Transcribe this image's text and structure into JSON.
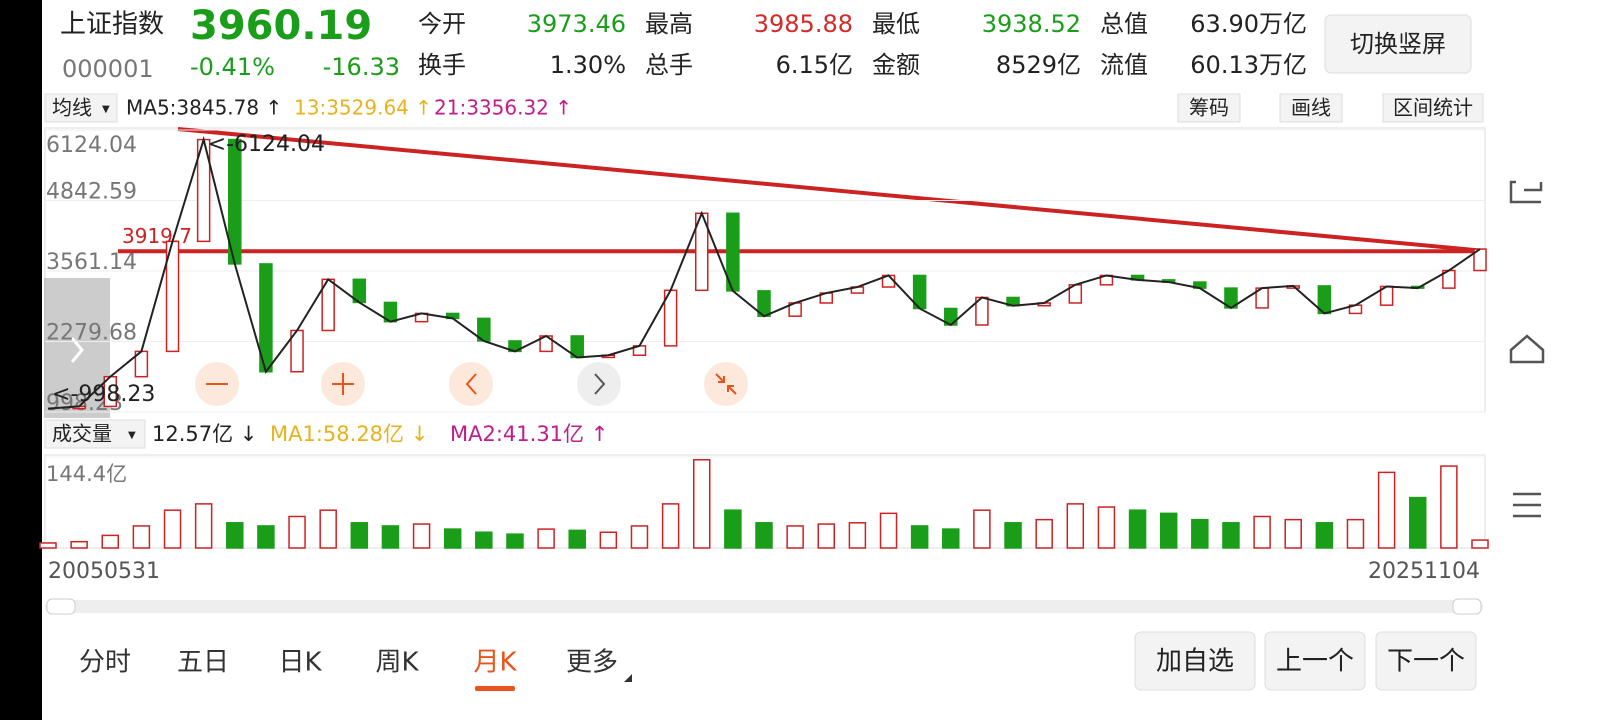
{
  "header": {
    "name": "上证指数",
    "price": "3960.19",
    "code": "000001",
    "change_pct": "-0.41%",
    "change": "-16.33",
    "stats": [
      [
        "今开",
        "3973.46"
      ],
      [
        "最高",
        "3985.88"
      ],
      [
        "最低",
        "3938.52"
      ],
      [
        "总值",
        "63.90万亿"
      ],
      [
        "换手",
        "1.30%"
      ],
      [
        "总手",
        "6.15亿"
      ],
      [
        "金额",
        "8529亿"
      ],
      [
        "流值",
        "60.13万亿"
      ]
    ],
    "button": "切换竖屏"
  },
  "toolbar": {
    "ma_select": "均线",
    "ma5": "MA5:3845.78 ↑",
    "ma13": "13:3529.64 ↑",
    "ma21": "21:3356.32 ↑",
    "buttons": [
      "筹码",
      "画线",
      "区间统计"
    ]
  },
  "chart_data": {
    "type": "line",
    "color": "#222222",
    "categories": [
      "20050531",
      null,
      null,
      null,
      null,
      null,
      null,
      null,
      null,
      null,
      null,
      null,
      null,
      null,
      null,
      null,
      null,
      null,
      null,
      null,
      null,
      null,
      null,
      null,
      null,
      null,
      null,
      null,
      null,
      null,
      null,
      null,
      null,
      null,
      null,
      null,
      null,
      null,
      null,
      null,
      null,
      null,
      null,
      null,
      null,
      null,
      "20251104"
    ],
    "values": [
      1060,
      1100,
      1640,
      2100,
      4100,
      5950,
      3690,
      1730,
      2480,
      3410,
      2990,
      2640,
      2790,
      2700,
      2290,
      2100,
      2380,
      1990,
      2030,
      2200,
      3210,
      4610,
      3200,
      2740,
      2980,
      3160,
      3270,
      3480,
      2880,
      2580,
      3080,
      2930,
      2980,
      3310,
      3480,
      3400,
      3360,
      3250,
      2890,
      3250,
      3290,
      2790,
      2940,
      3280,
      3250,
      3570,
      3960
    ],
    "ylim": [
      998.23,
      6124.04
    ],
    "yticks": [
      998.23,
      2279.68,
      3561.14,
      4842.59,
      6124.04
    ],
    "annotations": [
      "<-6124.04",
      "<-998.23"
    ],
    "hline": 3919.7
  },
  "volume": {
    "type": "bar",
    "legend_select": "成交量",
    "current": "12.57亿 ↓",
    "ma1": "MA1:58.28亿 ↓",
    "ma2": "MA2:41.31亿 ↑",
    "values": [
      8,
      10,
      20,
      35,
      60,
      70,
      40,
      35,
      50,
      60,
      40,
      35,
      38,
      30,
      25,
      22,
      30,
      28,
      25,
      35,
      70,
      140,
      60,
      40,
      35,
      38,
      40,
      55,
      35,
      30,
      60,
      40,
      45,
      70,
      65,
      60,
      55,
      45,
      40,
      50,
      45,
      40,
      45,
      120,
      80,
      130,
      12.57
    ],
    "ylim": [
      0,
      144.4
    ],
    "yticks": [
      {
        "value": 144.4,
        "label": "144.4亿"
      }
    ]
  },
  "tabs": [
    "分时",
    "五日",
    "日K",
    "周K",
    "月K",
    "更多"
  ],
  "active_tab": 4,
  "actions": [
    "加自选",
    "上一个",
    "下一个"
  ]
}
